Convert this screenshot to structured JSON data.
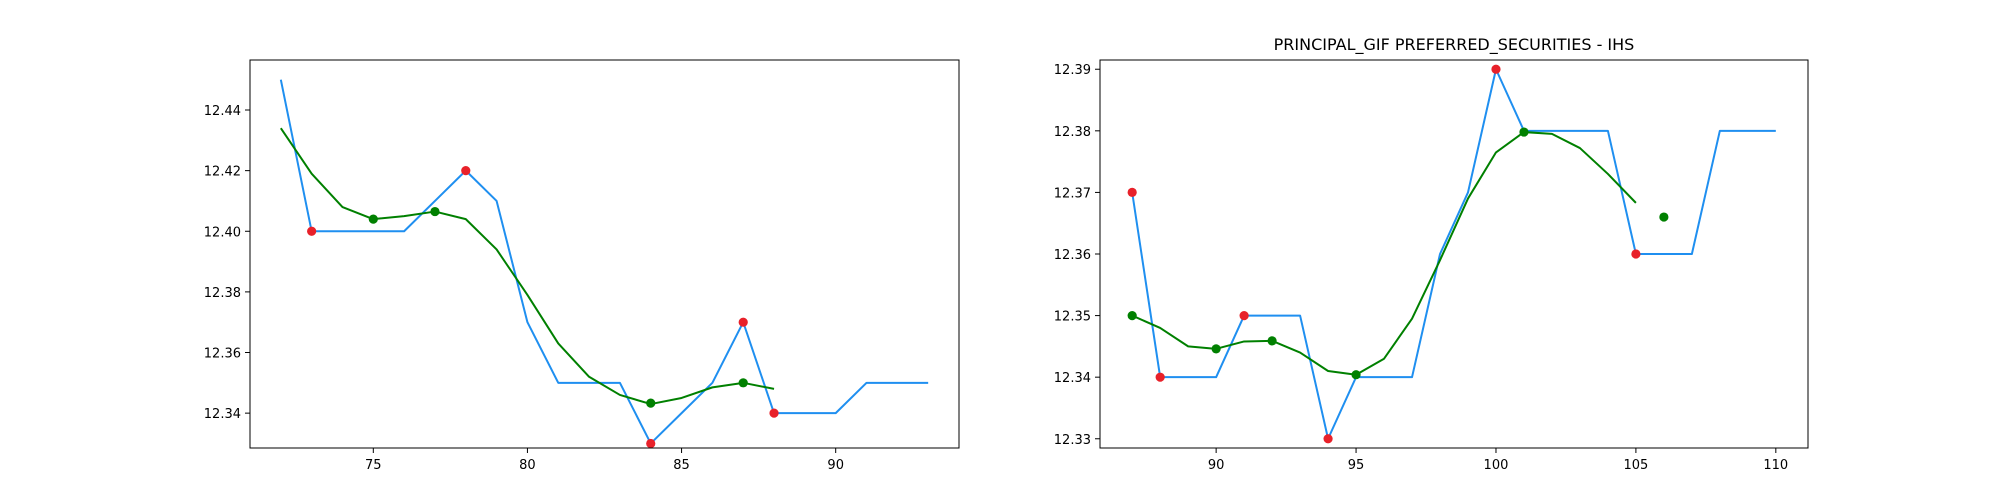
{
  "chart_data": [
    {
      "type": "line",
      "title": "",
      "xlabel": "",
      "ylabel": "",
      "xlim": [
        71,
        94
      ],
      "ylim": [
        12.3285,
        12.4565
      ],
      "xticks": [
        75,
        80,
        85,
        90
      ],
      "yticks": [
        12.34,
        12.36,
        12.38,
        12.4,
        12.42,
        12.44
      ],
      "ytick_labels": [
        "12.34",
        "12.36",
        "12.38",
        "12.40",
        "12.42",
        "12.44"
      ],
      "grid": false,
      "series": [
        {
          "role": "price",
          "color": "#1f8ff0",
          "x": [
            72,
            73,
            74,
            75,
            76,
            77,
            78,
            79,
            80,
            81,
            82,
            83,
            84,
            85,
            86,
            87,
            88,
            89,
            90,
            91,
            92,
            93
          ],
          "y": [
            12.45,
            12.4,
            12.4,
            12.4,
            12.4,
            12.41,
            12.42,
            12.41,
            12.37,
            12.35,
            12.35,
            12.35,
            12.33,
            12.34,
            12.35,
            12.37,
            12.34,
            12.34,
            12.34,
            12.35,
            12.35,
            12.35
          ]
        },
        {
          "role": "smoothed",
          "color": "#008000",
          "x": [
            72,
            73,
            74,
            75,
            76,
            77,
            78,
            79,
            80,
            81,
            82,
            83,
            84,
            85,
            86,
            87,
            88
          ],
          "y": [
            12.434,
            12.419,
            12.408,
            12.404,
            12.405,
            12.4065,
            12.404,
            12.394,
            12.379,
            12.363,
            12.352,
            12.346,
            12.343,
            12.345,
            12.3485,
            12.35,
            12.348
          ]
        }
      ],
      "points": [
        {
          "role": "red-marker",
          "color": "#e8212a",
          "x": [
            73,
            78,
            84,
            87,
            88
          ],
          "y": [
            12.4,
            12.42,
            12.33,
            12.37,
            12.34
          ]
        },
        {
          "role": "green-marker",
          "color": "#008000",
          "x": [
            75,
            77,
            84,
            87
          ],
          "y": [
            12.404,
            12.4065,
            12.3433,
            12.35
          ]
        }
      ]
    },
    {
      "type": "line",
      "title": "PRINCIPAL_GIF PREFERRED_SECURITIES - IHS",
      "xlabel": "",
      "ylabel": "",
      "xlim": [
        85.85,
        111.15
      ],
      "ylim": [
        12.3285,
        12.3915
      ],
      "xticks": [
        90,
        95,
        100,
        105,
        110
      ],
      "yticks": [
        12.33,
        12.34,
        12.35,
        12.36,
        12.37,
        12.38,
        12.39
      ],
      "ytick_labels": [
        "12.33",
        "12.34",
        "12.35",
        "12.36",
        "12.37",
        "12.38",
        "12.39"
      ],
      "grid": false,
      "series": [
        {
          "role": "price",
          "color": "#1f8ff0",
          "x": [
            87,
            88,
            89,
            90,
            91,
            92,
            93,
            94,
            95,
            96,
            97,
            98,
            99,
            100,
            101,
            102,
            103,
            104,
            105,
            106,
            107,
            108,
            109,
            110
          ],
          "y": [
            12.37,
            12.34,
            12.34,
            12.34,
            12.35,
            12.35,
            12.35,
            12.33,
            12.34,
            12.34,
            12.34,
            12.36,
            12.37,
            12.39,
            12.38,
            12.38,
            12.38,
            12.38,
            12.36,
            12.36,
            12.36,
            12.38,
            12.38,
            12.38
          ]
        },
        {
          "role": "smoothed",
          "color": "#008000",
          "x": [
            87,
            88,
            89,
            90,
            91,
            92,
            93,
            94,
            95,
            96,
            97,
            98,
            99,
            100,
            101,
            102,
            103,
            104,
            105
          ],
          "y": [
            12.35,
            12.348,
            12.345,
            12.3446,
            12.3458,
            12.3459,
            12.344,
            12.341,
            12.3404,
            12.343,
            12.3495,
            12.359,
            12.369,
            12.3765,
            12.3798,
            12.3795,
            12.3772,
            12.373,
            12.3683
          ]
        }
      ],
      "points": [
        {
          "role": "red-marker",
          "color": "#e8212a",
          "x": [
            87,
            88,
            91,
            94,
            100,
            105
          ],
          "y": [
            12.37,
            12.34,
            12.35,
            12.33,
            12.39,
            12.36
          ]
        },
        {
          "role": "green-marker",
          "color": "#008000",
          "x": [
            87,
            90,
            92,
            95,
            101,
            106
          ],
          "y": [
            12.35,
            12.3446,
            12.3459,
            12.3404,
            12.3798,
            12.366
          ]
        }
      ]
    }
  ]
}
